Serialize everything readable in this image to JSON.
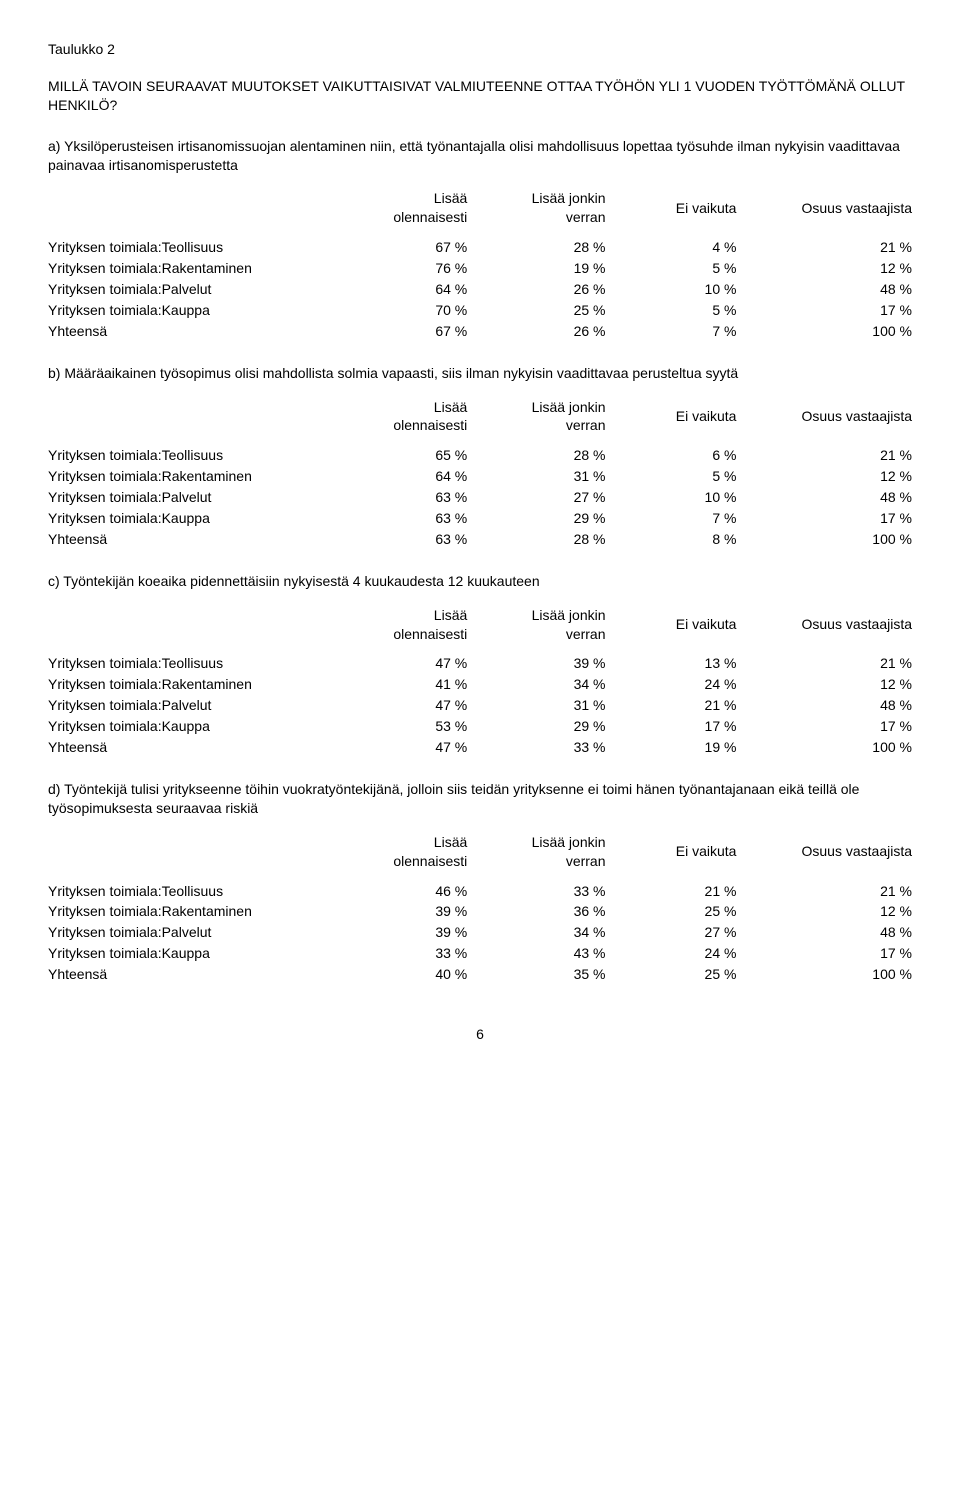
{
  "title": "Taulukko 2",
  "question": "MILLÄ TAVOIN SEURAAVAT MUUTOKSET VAIKUTTAISIVAT VALMIUTEENNE OTTAA TYÖHÖN YLI 1 VUODEN TYÖTTÖMÄNÄ OLLUT HENKILÖ?",
  "headers": {
    "col1": "Lisää olennaisesti",
    "col2": "Lisää jonkin verran",
    "col3": "Ei vaikuta",
    "col4": "Osuus vastaajista"
  },
  "row_labels": {
    "r0": "Yrityksen toimiala:Teollisuus",
    "r1": "Yrityksen toimiala:Rakentaminen",
    "r2": "Yrityksen toimiala:Palvelut",
    "r3": "Yrityksen toimiala:Kauppa",
    "total": "Yhteensä"
  },
  "sections": [
    {
      "desc": "a) Yksilöperusteisen irtisanomissuojan alentaminen niin, että työnantajalla olisi mahdollisuus lopettaa työsuhde ilman nykyisin vaadittavaa painavaa irtisanomisperustetta",
      "rows": [
        [
          "67 %",
          "28 %",
          "4 %",
          "21 %"
        ],
        [
          "76 %",
          "19 %",
          "5 %",
          "12 %"
        ],
        [
          "64 %",
          "26 %",
          "10 %",
          "48 %"
        ],
        [
          "70 %",
          "25 %",
          "5 %",
          "17 %"
        ],
        [
          "67 %",
          "26 %",
          "7 %",
          "100 %"
        ]
      ]
    },
    {
      "desc": "b) Määräaikainen työsopimus olisi mahdollista solmia vapaasti, siis ilman nykyisin vaadittavaa perusteltua syytä",
      "rows": [
        [
          "65 %",
          "28 %",
          "6 %",
          "21 %"
        ],
        [
          "64 %",
          "31 %",
          "5 %",
          "12 %"
        ],
        [
          "63 %",
          "27 %",
          "10 %",
          "48 %"
        ],
        [
          "63 %",
          "29 %",
          "7 %",
          "17 %"
        ],
        [
          "63 %",
          "28 %",
          "8 %",
          "100 %"
        ]
      ]
    },
    {
      "desc": "c) Työntekijän koeaika pidennettäisiin nykyisestä 4 kuukaudesta 12 kuukauteen",
      "rows": [
        [
          "47 %",
          "39 %",
          "13 %",
          "21 %"
        ],
        [
          "41 %",
          "34 %",
          "24 %",
          "12 %"
        ],
        [
          "47 %",
          "31 %",
          "21 %",
          "48 %"
        ],
        [
          "53 %",
          "29 %",
          "17 %",
          "17 %"
        ],
        [
          "47 %",
          "33 %",
          "19 %",
          "100 %"
        ]
      ]
    },
    {
      "desc": "d) Työntekijä tulisi yritykseenne töihin vuokratyöntekijänä, jolloin siis teidän yrityksenne ei toimi hänen työnantajanaan eikä teillä ole työsopimuksesta seuraavaa riskiä",
      "rows": [
        [
          "46 %",
          "33 %",
          "21 %",
          "21 %"
        ],
        [
          "39 %",
          "36 %",
          "25 %",
          "12 %"
        ],
        [
          "39 %",
          "34 %",
          "27 %",
          "48 %"
        ],
        [
          "33 %",
          "43 %",
          "24 %",
          "17 %"
        ],
        [
          "40 %",
          "35 %",
          "25 %",
          "100 %"
        ]
      ]
    }
  ],
  "page_number": "6"
}
